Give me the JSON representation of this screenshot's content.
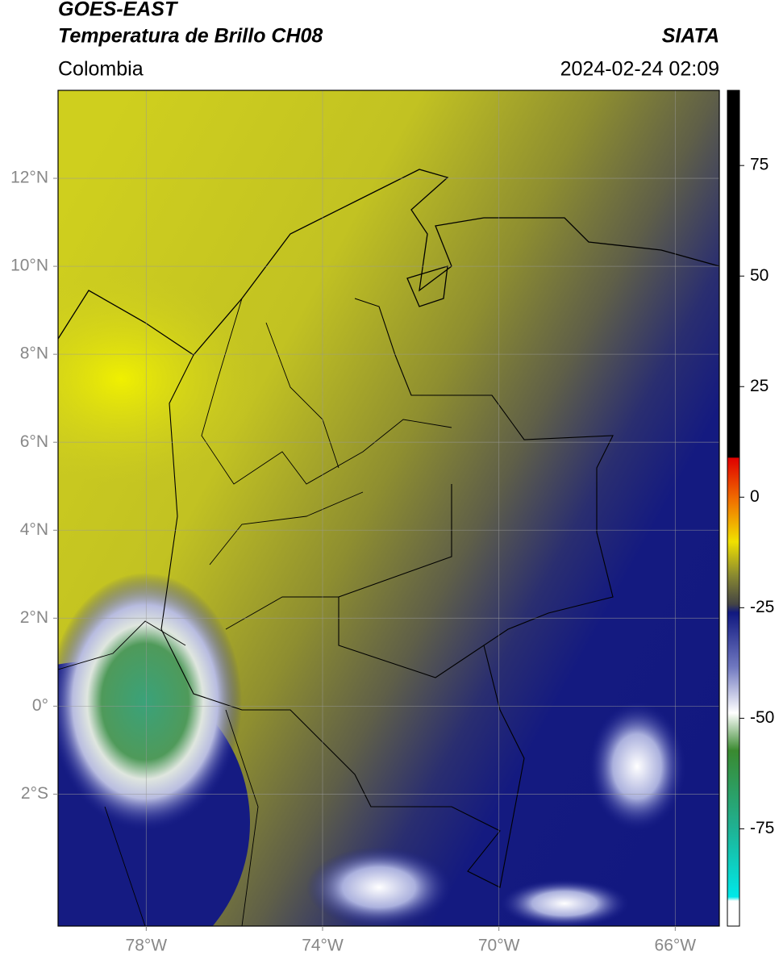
{
  "header": {
    "title1": "GOES-EAST",
    "title2": "Temperatura de Brillo CH08",
    "brand": "SIATA",
    "region": "Colombia",
    "datetime": "2024-02-24 02:09"
  },
  "map": {
    "xlim": [
      -80,
      -65
    ],
    "ylim": [
      -5,
      14
    ],
    "xticks": [
      {
        "value": -78,
        "label": "78°W"
      },
      {
        "value": -74,
        "label": "74°W"
      },
      {
        "value": -70,
        "label": "70°W"
      },
      {
        "value": -66,
        "label": "66°W"
      }
    ],
    "yticks": [
      {
        "value": 12,
        "label": "12°N"
      },
      {
        "value": 10,
        "label": "10°N"
      },
      {
        "value": 8,
        "label": "8°N"
      },
      {
        "value": 6,
        "label": "6°N"
      },
      {
        "value": 4,
        "label": "4°N"
      },
      {
        "value": 2,
        "label": "2°N"
      },
      {
        "value": 0,
        "label": "0°"
      },
      {
        "value": -2,
        "label": "2°S"
      }
    ],
    "grid": true
  },
  "colorbar": {
    "lim": [
      -97,
      92
    ],
    "ticks": [
      75,
      50,
      25,
      0,
      -25,
      -50,
      -75
    ]
  }
}
